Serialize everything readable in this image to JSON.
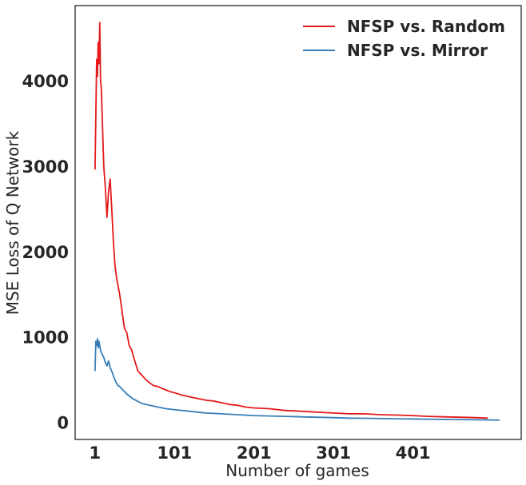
{
  "chart_data": {
    "type": "line",
    "title": "",
    "xlabel": "Number of games",
    "ylabel": "MSE Loss of Q Network",
    "xlim": [
      -24,
      537
    ],
    "ylim": [
      -200,
      4880
    ],
    "xticks": [
      1,
      101,
      201,
      301,
      401
    ],
    "yticks": [
      0,
      1000,
      2000,
      3000,
      4000
    ],
    "grid": false,
    "legend_position": "top-right",
    "series": [
      {
        "name": "NFSP vs. Random",
        "color": "#e41a1c",
        "x": [
          1,
          2,
          3,
          4,
          5,
          6,
          7,
          8,
          9,
          10,
          12,
          14,
          16,
          18,
          20,
          22,
          24,
          26,
          28,
          30,
          32,
          35,
          38,
          41,
          44,
          47,
          50,
          55,
          60,
          65,
          70,
          75,
          80,
          85,
          90,
          95,
          100,
          110,
          120,
          130,
          140,
          150,
          160,
          170,
          180,
          190,
          200,
          220,
          240,
          260,
          280,
          300,
          320,
          340,
          360,
          380,
          400,
          420,
          440,
          460,
          480,
          495
        ],
        "y": [
          2960,
          3600,
          4250,
          4050,
          4450,
          4200,
          4680,
          4000,
          3900,
          3600,
          3000,
          2750,
          2400,
          2700,
          2850,
          2500,
          2150,
          1850,
          1700,
          1600,
          1500,
          1300,
          1100,
          1050,
          900,
          850,
          750,
          600,
          550,
          500,
          460,
          430,
          420,
          400,
          380,
          360,
          350,
          320,
          300,
          280,
          260,
          250,
          230,
          210,
          200,
          180,
          170,
          160,
          140,
          130,
          120,
          110,
          100,
          100,
          90,
          85,
          80,
          70,
          65,
          60,
          55,
          50
        ]
      },
      {
        "name": "NFSP vs. Mirror",
        "color": "#377eb8",
        "x": [
          1,
          2,
          3,
          4,
          5,
          6,
          7,
          8,
          10,
          12,
          14,
          16,
          18,
          20,
          22,
          24,
          26,
          28,
          30,
          32,
          34,
          36,
          38,
          40,
          44,
          48,
          52,
          56,
          60,
          70,
          80,
          90,
          100,
          110,
          120,
          130,
          140,
          150,
          160,
          180,
          200,
          220,
          240,
          260,
          280,
          300,
          320,
          340,
          360,
          380,
          400,
          420,
          440,
          460,
          480,
          500,
          510
        ],
        "y": [
          600,
          950,
          900,
          980,
          870,
          950,
          900,
          840,
          800,
          760,
          700,
          660,
          720,
          640,
          600,
          550,
          500,
          460,
          430,
          420,
          400,
          380,
          360,
          340,
          310,
          280,
          260,
          240,
          220,
          200,
          180,
          160,
          150,
          140,
          130,
          120,
          110,
          105,
          100,
          90,
          80,
          75,
          70,
          65,
          60,
          55,
          50,
          48,
          45,
          42,
          40,
          38,
          35,
          33,
          30,
          28,
          25
        ]
      }
    ]
  }
}
